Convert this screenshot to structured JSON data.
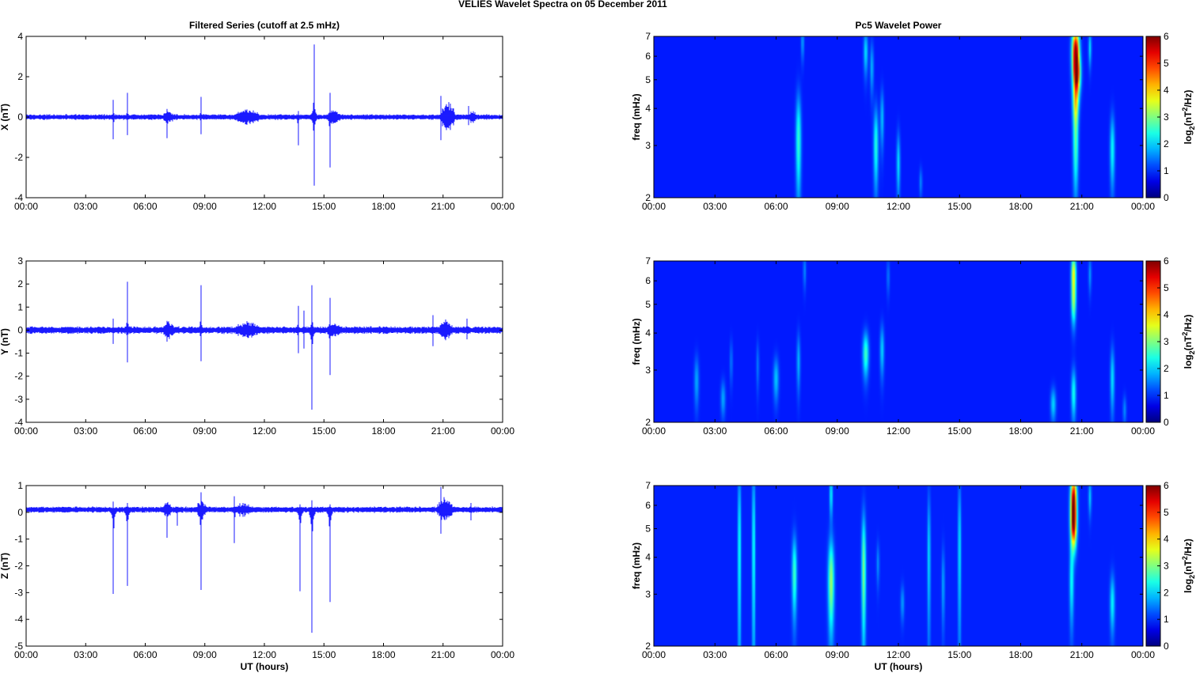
{
  "figure": {
    "title": "VELIES Wavelet Spectra on 05 December  2011"
  },
  "chart_data": [
    {
      "id": "x-series",
      "type": "line",
      "title": "Filtered Series (cutoff at 2.5 mHz)",
      "ylabel": "X (nT)",
      "xlabel": "",
      "xlim": [
        0,
        24
      ],
      "ylim": [
        -4,
        4
      ],
      "xticks": [
        "00:00",
        "03:00",
        "06:00",
        "09:00",
        "12:00",
        "15:00",
        "18:00",
        "21:00",
        "00:00"
      ],
      "yticks": [
        -4,
        -2,
        0,
        2,
        4
      ],
      "color": "#0000ff",
      "noise_amplitude": 0.12,
      "spikes": [
        {
          "t": 4.4,
          "max": 0.85,
          "min": -1.1
        },
        {
          "t": 5.1,
          "max": 1.2,
          "min": -0.9
        },
        {
          "t": 7.1,
          "max": 0.4,
          "min": -1.05
        },
        {
          "t": 8.8,
          "max": 1.0,
          "min": -0.85
        },
        {
          "t": 13.7,
          "max": 0.3,
          "min": -1.4
        },
        {
          "t": 14.5,
          "max": 3.6,
          "min": -3.4
        },
        {
          "t": 15.3,
          "max": 1.2,
          "min": -2.5
        },
        {
          "t": 20.9,
          "max": 1.05,
          "min": -1.15
        },
        {
          "t": 22.3,
          "max": 0.55,
          "min": -0.4
        }
      ],
      "bursts": [
        {
          "t0": 6.8,
          "t1": 7.5,
          "amp": 0.35
        },
        {
          "t0": 10.3,
          "t1": 12.0,
          "amp": 0.35
        },
        {
          "t0": 15.0,
          "t1": 16.0,
          "amp": 0.3
        },
        {
          "t0": 20.8,
          "t1": 21.7,
          "amp": 0.7
        },
        {
          "t0": 22.2,
          "t1": 22.8,
          "amp": 0.3
        }
      ]
    },
    {
      "id": "y-series",
      "type": "line",
      "title": "",
      "ylabel": "Y (nT)",
      "xlabel": "",
      "xlim": [
        0,
        24
      ],
      "ylim": [
        -4,
        3
      ],
      "xticks": [
        "00:00",
        "03:00",
        "06:00",
        "09:00",
        "12:00",
        "15:00",
        "18:00",
        "21:00",
        "00:00"
      ],
      "yticks": [
        -4,
        -3,
        -2,
        -1,
        0,
        1,
        2,
        3
      ],
      "color": "#0000ff",
      "noise_amplitude": 0.14,
      "spikes": [
        {
          "t": 4.4,
          "max": 0.5,
          "min": -0.6
        },
        {
          "t": 5.1,
          "max": 2.1,
          "min": -1.4
        },
        {
          "t": 7.1,
          "max": 0.4,
          "min": -0.5
        },
        {
          "t": 8.8,
          "max": 1.95,
          "min": -1.35
        },
        {
          "t": 13.7,
          "max": 1.05,
          "min": -1.0
        },
        {
          "t": 14.0,
          "max": 0.85,
          "min": -0.8
        },
        {
          "t": 14.4,
          "max": 1.95,
          "min": -3.45
        },
        {
          "t": 15.3,
          "max": 1.4,
          "min": -1.95
        },
        {
          "t": 20.5,
          "max": 0.65,
          "min": -0.7
        },
        {
          "t": 22.2,
          "max": 0.5,
          "min": -0.4
        }
      ],
      "bursts": [
        {
          "t0": 6.8,
          "t1": 7.6,
          "amp": 0.35
        },
        {
          "t0": 10.3,
          "t1": 12.0,
          "amp": 0.35
        },
        {
          "t0": 15.0,
          "t1": 16.0,
          "amp": 0.3
        },
        {
          "t0": 20.7,
          "t1": 21.6,
          "amp": 0.4
        }
      ]
    },
    {
      "id": "z-series",
      "type": "line",
      "title": "",
      "ylabel": "Z (nT)",
      "xlabel": "UT (hours)",
      "xlim": [
        0,
        24
      ],
      "ylim": [
        -5,
        1
      ],
      "xticks": [
        "00:00",
        "03:00",
        "06:00",
        "09:00",
        "12:00",
        "15:00",
        "18:00",
        "21:00",
        "00:00"
      ],
      "yticks": [
        -5,
        -4,
        -3,
        -2,
        -1,
        0,
        1
      ],
      "color": "#0000ff",
      "baseline": 0.1,
      "noise_amplitude": 0.1,
      "spikes": [
        {
          "t": 4.4,
          "max": 0.4,
          "min": -3.05
        },
        {
          "t": 5.1,
          "max": 0.35,
          "min": -2.75
        },
        {
          "t": 7.1,
          "max": 0.25,
          "min": -0.95
        },
        {
          "t": 7.6,
          "max": 0.2,
          "min": -0.5
        },
        {
          "t": 8.8,
          "max": 0.75,
          "min": -2.9
        },
        {
          "t": 10.5,
          "max": 0.6,
          "min": -1.15
        },
        {
          "t": 13.8,
          "max": 0.3,
          "min": -2.95
        },
        {
          "t": 14.4,
          "max": 0.45,
          "min": -4.5
        },
        {
          "t": 15.3,
          "max": 0.3,
          "min": -3.35
        },
        {
          "t": 20.9,
          "max": 0.95,
          "min": -0.8
        },
        {
          "t": 22.4,
          "max": 0.35,
          "min": -0.3
        }
      ],
      "bursts": [
        {
          "t0": 6.8,
          "t1": 7.4,
          "amp": 0.3
        },
        {
          "t0": 8.5,
          "t1": 9.2,
          "amp": 0.35
        },
        {
          "t0": 10.3,
          "t1": 11.5,
          "amp": 0.25
        },
        {
          "t0": 20.6,
          "t1": 21.6,
          "amp": 0.45
        }
      ]
    },
    {
      "id": "x-wavelet",
      "type": "heatmap",
      "title": "Pc5 Wavelet Power",
      "ylabel": "freq (mHz)",
      "xlabel": "",
      "xlim": [
        0,
        24
      ],
      "ylim": [
        2,
        7
      ],
      "yscale": "log",
      "xticks": [
        "00:00",
        "03:00",
        "06:00",
        "09:00",
        "12:00",
        "15:00",
        "18:00",
        "21:00",
        "00:00"
      ],
      "yticks": [
        2,
        3,
        4,
        5,
        6,
        7
      ],
      "colorbar": {
        "label": "log2(nT²/Hz)",
        "min": 0,
        "max": 6,
        "ticks": [
          0,
          1,
          2,
          3,
          4,
          5,
          6
        ]
      },
      "background": 0.2,
      "blobs": [
        {
          "t": 7.1,
          "f": 3.1,
          "dt": 0.09,
          "df": 0.28,
          "p": 1.9
        },
        {
          "t": 7.3,
          "f": 6.7,
          "dt": 0.05,
          "df": 0.1,
          "p": 1.0
        },
        {
          "t": 10.4,
          "f": 6.2,
          "dt": 0.07,
          "df": 0.12,
          "p": 1.4
        },
        {
          "t": 10.7,
          "f": 5.5,
          "dt": 0.06,
          "df": 0.14,
          "p": 1.1
        },
        {
          "t": 10.9,
          "f": 3.0,
          "dt": 0.08,
          "df": 0.22,
          "p": 1.8
        },
        {
          "t": 11.2,
          "f": 3.7,
          "dt": 0.06,
          "df": 0.16,
          "p": 1.2
        },
        {
          "t": 12.0,
          "f": 2.6,
          "dt": 0.06,
          "df": 0.18,
          "p": 1.4
        },
        {
          "t": 13.1,
          "f": 2.25,
          "dt": 0.05,
          "df": 0.08,
          "p": 0.8
        },
        {
          "t": 20.7,
          "f": 6.3,
          "dt": 0.12,
          "df": 0.12,
          "p": 5.6
        },
        {
          "t": 20.75,
          "f": 5.2,
          "dt": 0.12,
          "df": 0.1,
          "p": 4.8
        },
        {
          "t": 20.7,
          "f": 4.2,
          "dt": 0.1,
          "df": 0.12,
          "p": 2.6
        },
        {
          "t": 20.7,
          "f": 3.0,
          "dt": 0.09,
          "df": 0.24,
          "p": 2.0
        },
        {
          "t": 21.4,
          "f": 6.4,
          "dt": 0.05,
          "df": 0.1,
          "p": 1.4
        },
        {
          "t": 22.5,
          "f": 2.9,
          "dt": 0.08,
          "df": 0.2,
          "p": 1.6
        }
      ]
    },
    {
      "id": "y-wavelet",
      "type": "heatmap",
      "title": "",
      "ylabel": "freq (mHz)",
      "xlabel": "",
      "xlim": [
        0,
        24
      ],
      "ylim": [
        2,
        7
      ],
      "yscale": "log",
      "xticks": [
        "00:00",
        "03:00",
        "06:00",
        "09:00",
        "12:00",
        "15:00",
        "18:00",
        "21:00",
        "00:00"
      ],
      "yticks": [
        2,
        3,
        4,
        5,
        6,
        7
      ],
      "colorbar": {
        "label": "log2(nT²/Hz)",
        "min": 0,
        "max": 6,
        "ticks": [
          0,
          1,
          2,
          3,
          4,
          5,
          6
        ]
      },
      "background": 0.2,
      "blobs": [
        {
          "t": 2.1,
          "f": 2.75,
          "dt": 0.08,
          "df": 0.14,
          "p": 1.0
        },
        {
          "t": 3.4,
          "f": 2.4,
          "dt": 0.08,
          "df": 0.1,
          "p": 1.0
        },
        {
          "t": 3.8,
          "f": 3.2,
          "dt": 0.05,
          "df": 0.12,
          "p": 0.7
        },
        {
          "t": 5.1,
          "f": 3.1,
          "dt": 0.05,
          "df": 0.14,
          "p": 0.7
        },
        {
          "t": 6.0,
          "f": 2.8,
          "dt": 0.09,
          "df": 0.12,
          "p": 1.2
        },
        {
          "t": 7.1,
          "f": 3.2,
          "dt": 0.06,
          "df": 0.16,
          "p": 1.1
        },
        {
          "t": 7.4,
          "f": 6.5,
          "dt": 0.05,
          "df": 0.1,
          "p": 0.8
        },
        {
          "t": 10.4,
          "f": 3.4,
          "dt": 0.1,
          "df": 0.12,
          "p": 2.0
        },
        {
          "t": 11.2,
          "f": 3.5,
          "dt": 0.07,
          "df": 0.14,
          "p": 1.3
        },
        {
          "t": 11.5,
          "f": 6.2,
          "dt": 0.05,
          "df": 0.1,
          "p": 0.7
        },
        {
          "t": 19.6,
          "f": 2.3,
          "dt": 0.09,
          "df": 0.09,
          "p": 1.3
        },
        {
          "t": 20.6,
          "f": 6.4,
          "dt": 0.08,
          "df": 0.1,
          "p": 3.1
        },
        {
          "t": 20.6,
          "f": 5.1,
          "dt": 0.08,
          "df": 0.12,
          "p": 2.4
        },
        {
          "t": 20.6,
          "f": 2.5,
          "dt": 0.08,
          "df": 0.14,
          "p": 1.7
        },
        {
          "t": 21.4,
          "f": 6.3,
          "dt": 0.05,
          "df": 0.1,
          "p": 0.9
        },
        {
          "t": 22.5,
          "f": 2.8,
          "dt": 0.07,
          "df": 0.18,
          "p": 1.4
        },
        {
          "t": 23.1,
          "f": 2.2,
          "dt": 0.06,
          "df": 0.08,
          "p": 0.8
        }
      ]
    },
    {
      "id": "z-wavelet",
      "type": "heatmap",
      "title": "",
      "ylabel": "freq (mHz)",
      "xlabel": "UT (hours)",
      "xlim": [
        0,
        24
      ],
      "ylim": [
        2,
        7
      ],
      "yscale": "log",
      "xticks": [
        "00:00",
        "03:00",
        "06:00",
        "09:00",
        "12:00",
        "15:00",
        "18:00",
        "21:00",
        "00:00"
      ],
      "yticks": [
        2,
        3,
        4,
        5,
        6,
        7
      ],
      "colorbar": {
        "label": "log2(nT²/Hz)",
        "min": 0,
        "max": 6,
        "ticks": [
          0,
          1,
          2,
          3,
          4,
          5,
          6
        ]
      },
      "background": 0.25,
      "blobs": [
        {
          "t": 4.2,
          "f": 4.2,
          "dt": 0.05,
          "df": 0.55,
          "p": 1.8
        },
        {
          "t": 4.9,
          "f": 4.2,
          "dt": 0.05,
          "df": 0.55,
          "p": 1.8
        },
        {
          "t": 6.9,
          "f": 3.5,
          "dt": 0.08,
          "df": 0.22,
          "p": 2.0
        },
        {
          "t": 8.7,
          "f": 3.3,
          "dt": 0.1,
          "df": 0.25,
          "p": 2.6
        },
        {
          "t": 8.7,
          "f": 6.5,
          "dt": 0.05,
          "df": 0.12,
          "p": 1.6
        },
        {
          "t": 10.3,
          "f": 3.6,
          "dt": 0.07,
          "df": 0.35,
          "p": 2.4
        },
        {
          "t": 11.0,
          "f": 3.8,
          "dt": 0.05,
          "df": 0.12,
          "p": 0.8
        },
        {
          "t": 12.2,
          "f": 2.8,
          "dt": 0.06,
          "df": 0.1,
          "p": 0.9
        },
        {
          "t": 13.5,
          "f": 4.0,
          "dt": 0.05,
          "df": 0.4,
          "p": 1.4
        },
        {
          "t": 14.2,
          "f": 3.2,
          "dt": 0.05,
          "df": 0.22,
          "p": 1.0
        },
        {
          "t": 15.0,
          "f": 4.2,
          "dt": 0.05,
          "df": 0.45,
          "p": 1.5
        },
        {
          "t": 20.6,
          "f": 6.3,
          "dt": 0.1,
          "df": 0.13,
          "p": 5.5
        },
        {
          "t": 20.6,
          "f": 5.1,
          "dt": 0.1,
          "df": 0.12,
          "p": 4.3
        },
        {
          "t": 20.5,
          "f": 3.3,
          "dt": 0.07,
          "df": 0.22,
          "p": 1.6
        },
        {
          "t": 21.4,
          "f": 6.4,
          "dt": 0.05,
          "df": 0.1,
          "p": 1.2
        },
        {
          "t": 22.5,
          "f": 2.8,
          "dt": 0.08,
          "df": 0.16,
          "p": 1.5
        }
      ]
    }
  ]
}
